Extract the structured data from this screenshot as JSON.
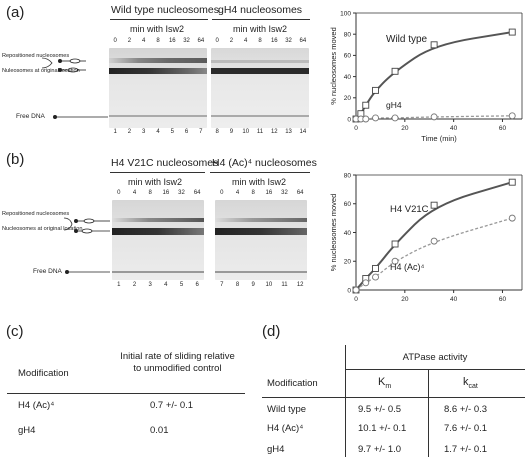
{
  "panel_a": {
    "label": "(a)",
    "gel1_title": "Wild type nucleosomes",
    "gel2_title": "gH4 nucleosomes",
    "sub_label": "min with Isw2",
    "time_values": [
      "0",
      "2",
      "4",
      "8",
      "16",
      "32",
      "64"
    ],
    "lane_numbers_1": [
      "1",
      "2",
      "3",
      "4",
      "5",
      "6",
      "7"
    ],
    "lane_numbers_2": [
      "8",
      "9",
      "10",
      "11",
      "12",
      "13",
      "14"
    ],
    "band_label_1": "Repositioned nucleosomes",
    "band_label_2": "Nuleosomes at original location",
    "free_dna": "Free DNA"
  },
  "panel_b": {
    "label": "(b)",
    "gel1_title": "H4 V21C nucleosomes",
    "gel2_title": "H4 (Ac)⁴ nucleosomes",
    "sub_label": "min with Isw2",
    "time_values": [
      "0",
      "4",
      "8",
      "16",
      "32",
      "64"
    ],
    "lane_numbers_1": [
      "1",
      "2",
      "3",
      "4",
      "5",
      "6"
    ],
    "lane_numbers_2": [
      "7",
      "8",
      "9",
      "10",
      "11",
      "12"
    ],
    "band_label_1": "Repositioned nucleosomes",
    "band_label_2": "Nucleosomes at original location",
    "free_dna": "Free DNA"
  },
  "chart_data": [
    {
      "type": "line",
      "xlabel": "Time (min)",
      "ylabel": "% nucleosomes moved",
      "xlim": [
        0,
        68
      ],
      "ylim": [
        0,
        100
      ],
      "xticks": [
        0,
        20,
        40,
        60
      ],
      "yticks": [
        0,
        20,
        40,
        60,
        80,
        100
      ],
      "series": [
        {
          "name": "Wild type",
          "marker": "square",
          "line": "solid",
          "color": "#555555",
          "x": [
            0,
            2,
            4,
            8,
            16,
            32,
            64
          ],
          "y": [
            0,
            5,
            13,
            27,
            45,
            70,
            82
          ]
        },
        {
          "name": "gH4",
          "marker": "circle",
          "line": "dashed",
          "color": "#999999",
          "x": [
            0,
            2,
            4,
            8,
            16,
            32,
            64
          ],
          "y": [
            0,
            0,
            0,
            1,
            1,
            2,
            3
          ]
        }
      ]
    },
    {
      "type": "line",
      "xlabel": "",
      "ylabel": "% nucleosomes moved",
      "xlim": [
        0,
        68
      ],
      "ylim": [
        0,
        80
      ],
      "xticks": [
        0,
        20,
        40,
        60
      ],
      "yticks": [
        0,
        20,
        40,
        60,
        80
      ],
      "series": [
        {
          "name": "H4 V21C",
          "marker": "square",
          "line": "solid",
          "color": "#555555",
          "x": [
            0,
            4,
            8,
            16,
            32,
            64
          ],
          "y": [
            0,
            8,
            15,
            32,
            59,
            75
          ]
        },
        {
          "name": "H4 (Ac)⁴",
          "marker": "circle",
          "line": "dashed",
          "color": "#999999",
          "x": [
            0,
            4,
            8,
            16,
            32,
            64
          ],
          "y": [
            0,
            5,
            9,
            20,
            34,
            50
          ]
        }
      ]
    }
  ],
  "panel_c": {
    "label": "(c)",
    "col1": "Modification",
    "col2": "Initial rate of sliding relative to unmodified control",
    "rows": [
      {
        "mod": "H4 (Ac)⁴",
        "rate": "0.7 +/- 0.1"
      },
      {
        "mod": "gH4",
        "rate": "0.01"
      }
    ]
  },
  "panel_d": {
    "label": "(d)",
    "col1": "Modification",
    "group": "ATPase activity",
    "col_km": "K",
    "col_km_sub": "m",
    "col_kcat": "k",
    "col_kcat_sub": "cat",
    "rows": [
      {
        "mod": "Wild type",
        "km": "9.5 +/- 0.5",
        "kcat": "8.6 +/- 0.3"
      },
      {
        "mod": "H4 (Ac)⁴",
        "km": "10.1 +/- 0.1",
        "kcat": "7.6 +/- 0.1"
      },
      {
        "mod": "gH4",
        "km": "9.7 +/- 1.0",
        "kcat": "1.7 +/- 0.1"
      }
    ]
  }
}
